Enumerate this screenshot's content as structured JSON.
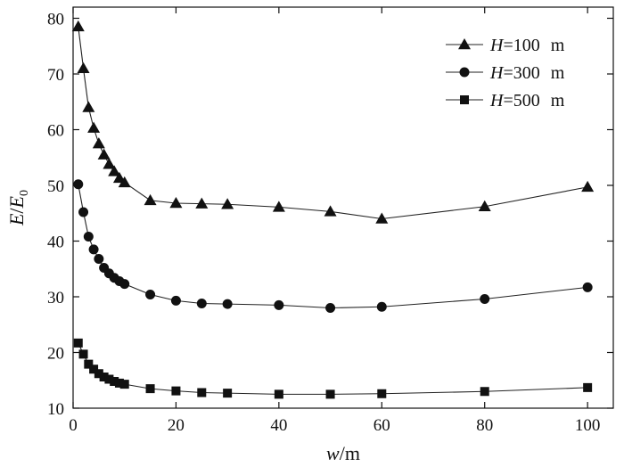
{
  "chart_data": {
    "type": "line",
    "xlabel": {
      "var": "w",
      "sep": "/",
      "unit": "m"
    },
    "ylabel": {
      "num": "E",
      "sep": "/",
      "den": "E",
      "sub": "0"
    },
    "xlim": [
      0,
      105
    ],
    "ylim": [
      10,
      82
    ],
    "xticks": [
      "0",
      "20",
      "40",
      "60",
      "80",
      "100"
    ],
    "yticks": [
      "10",
      "20",
      "30",
      "40",
      "50",
      "60",
      "70",
      "80"
    ],
    "grid": false,
    "legend_position": "top-right",
    "x": [
      1,
      2,
      3,
      4,
      5,
      6,
      7,
      8,
      9,
      10,
      15,
      20,
      25,
      30,
      40,
      50,
      60,
      80,
      100
    ],
    "series": [
      {
        "name": {
          "var": "H",
          "eq": "=",
          "val": "100",
          "unit": "m"
        },
        "marker": "triangle",
        "values": [
          78.5,
          71.0,
          64.0,
          60.3,
          57.5,
          55.5,
          53.8,
          52.5,
          51.3,
          50.5,
          47.3,
          46.8,
          46.7,
          46.6,
          46.1,
          45.3,
          44.0,
          46.2,
          49.7
        ]
      },
      {
        "name": {
          "var": "H",
          "eq": "=",
          "val": "300",
          "unit": "m"
        },
        "marker": "circle",
        "values": [
          50.2,
          45.2,
          40.8,
          38.5,
          36.8,
          35.2,
          34.2,
          33.4,
          32.8,
          32.3,
          30.4,
          29.3,
          28.8,
          28.7,
          28.5,
          28.0,
          28.2,
          29.6,
          31.7
        ]
      },
      {
        "name": {
          "var": "H",
          "eq": "=",
          "val": "500",
          "unit": "m"
        },
        "marker": "square",
        "values": [
          21.7,
          19.7,
          17.9,
          17.0,
          16.2,
          15.6,
          15.2,
          14.8,
          14.5,
          14.3,
          13.5,
          13.1,
          12.8,
          12.7,
          12.5,
          12.5,
          12.6,
          13.0,
          13.7
        ]
      }
    ]
  }
}
